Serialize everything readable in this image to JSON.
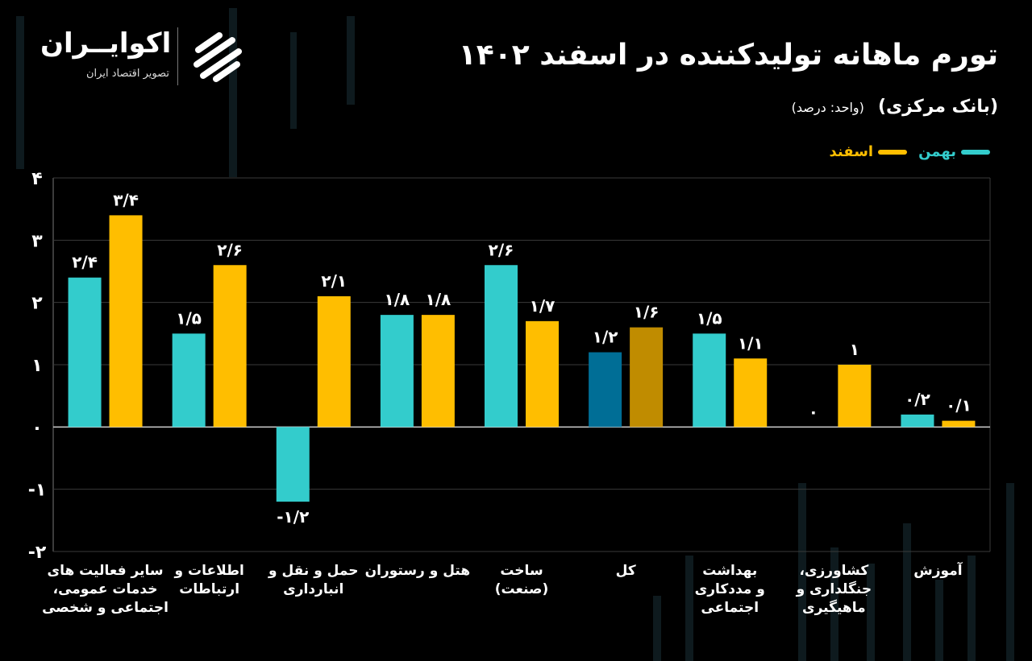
{
  "header": {
    "title": "تورم ماهانه تولیدکننده در اسفند ۱۴۰۲",
    "subtitle": "(بانک مرکزی)",
    "unit": "(واحد: درصد)"
  },
  "brand": {
    "name": "اکوایــران",
    "tagline": "تصویر اقتصاد ایران"
  },
  "colors": {
    "background": "#000000",
    "bahman": "#33cccc",
    "esfand": "#ffbe00",
    "bahman_total": "#006e96",
    "esfand_total": "#c08c00",
    "grid": "#3a3a3a"
  },
  "legend": [
    {
      "label": "بهمن",
      "color": "#33cccc"
    },
    {
      "label": "اسفند",
      "color": "#ffbe00"
    }
  ],
  "chart_data": {
    "type": "bar",
    "title": "تورم ماهانه تولیدکننده در اسفند ۱۴۰۲",
    "ylim": [
      -2,
      4
    ],
    "yticks": [
      4,
      3,
      2,
      1,
      0,
      -1,
      -2
    ],
    "ytick_labels": [
      "۴",
      "۳",
      "۲",
      "۱",
      "۰",
      "-۱",
      "-۲"
    ],
    "grid": true,
    "legend_position": "top-right",
    "categories": [
      "سایر فعالیت های خدمات عمومی، اجتماعی و شخصی",
      "اطلاعات و ارتباطات",
      "حمل و نقل و انبارداری",
      "هتل و رستوران",
      "ساخت (صنعت)",
      "کل",
      "بهداشت و مددکاری اجتماعی",
      "کشاورزی، جنگلداری و ماهیگیری",
      "آموزش"
    ],
    "category_lines": [
      [
        "سایر فعالیت های",
        "خدمات عمومی،",
        "اجتماعی و شخصی"
      ],
      [
        "اطلاعات و",
        "ارتباطات"
      ],
      [
        "حمل و نقل و",
        "انبارداری"
      ],
      [
        "هتل و رستوران"
      ],
      [
        "ساخت",
        "(صنعت)"
      ],
      [
        "کل"
      ],
      [
        "بهداشت",
        "و مددکاری",
        "اجتماعی"
      ],
      [
        "کشاورزی،",
        "جنگلداری و",
        "ماهیگیری"
      ],
      [
        "آموزش"
      ]
    ],
    "series": [
      {
        "name": "بهمن",
        "values": [
          2.4,
          1.5,
          -1.2,
          1.8,
          2.6,
          1.2,
          1.5,
          0,
          0.2
        ],
        "labels": [
          "۲/۴",
          "۱/۵",
          "-۱/۲",
          "۱/۸",
          "۲/۶",
          "۱/۲",
          "۱/۵",
          "۰",
          "۰/۲"
        ]
      },
      {
        "name": "اسفند",
        "values": [
          3.4,
          2.6,
          2.1,
          1.8,
          1.7,
          1.6,
          1.1,
          1,
          0.1
        ],
        "labels": [
          "۳/۴",
          "۲/۶",
          "۲/۱",
          "۱/۸",
          "۱/۷",
          "۱/۶",
          "۱/۱",
          "۱",
          "۰/۱"
        ]
      }
    ]
  }
}
